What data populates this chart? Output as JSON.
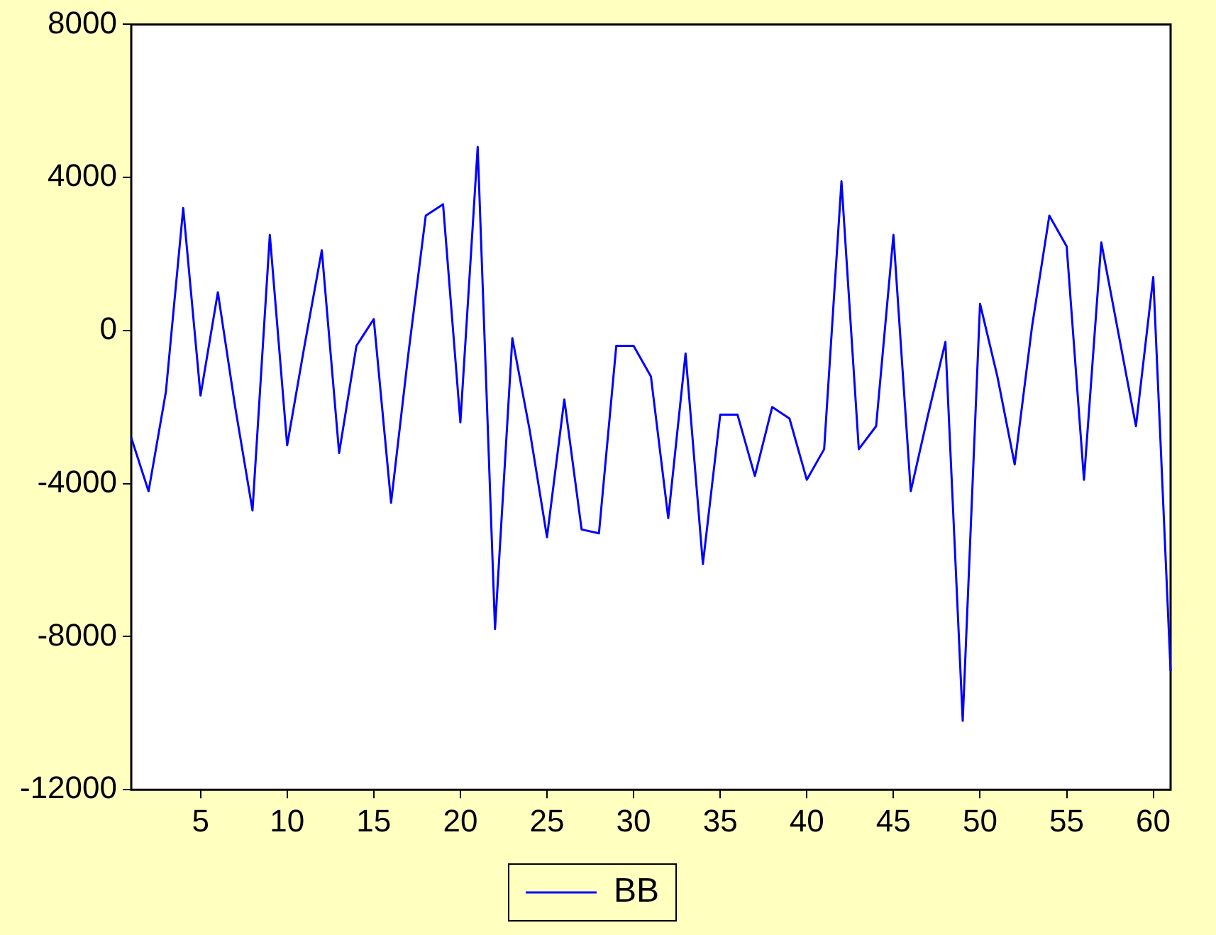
{
  "chart_data": {
    "type": "line",
    "x": [
      1,
      2,
      3,
      4,
      5,
      6,
      7,
      8,
      9,
      10,
      11,
      12,
      13,
      14,
      15,
      16,
      17,
      18,
      19,
      20,
      21,
      22,
      23,
      24,
      25,
      26,
      27,
      28,
      29,
      30,
      31,
      32,
      33,
      34,
      35,
      36,
      37,
      38,
      39,
      40,
      41,
      42,
      43,
      44,
      45,
      46,
      47,
      48,
      49,
      50,
      51,
      52,
      53,
      54,
      55,
      56,
      57,
      58,
      59,
      60,
      61
    ],
    "series": [
      {
        "name": "BB",
        "color": "#0000ff",
        "values": [
          -2800,
          -4200,
          -1600,
          3200,
          -1700,
          1000,
          -2000,
          -4700,
          2500,
          -3000,
          -400,
          2100,
          -3200,
          -400,
          300,
          -4500,
          -600,
          3000,
          3300,
          -2400,
          4800,
          -7800,
          -200,
          -2600,
          -5400,
          -1800,
          -5200,
          -5300,
          -400,
          -400,
          -1200,
          -4900,
          -600,
          -6100,
          -2200,
          -2200,
          -3800,
          -2000,
          -2300,
          -3900,
          -3100,
          3900,
          -3100,
          -2500,
          2500,
          -4200,
          -2200,
          -300,
          -10200,
          700,
          -1200,
          -3500,
          100,
          3000,
          2200,
          -3900,
          2300,
          -100,
          -2500,
          1400,
          -8900
        ]
      }
    ],
    "xlim": [
      1,
      61
    ],
    "xticks": [
      5,
      10,
      15,
      20,
      25,
      30,
      35,
      40,
      45,
      50,
      55,
      60
    ],
    "ylim": [
      -12000,
      8000
    ],
    "yticks": [
      -12000,
      -8000,
      -4000,
      0,
      4000,
      8000
    ],
    "grid": false,
    "legend": "bottom",
    "marker": "none",
    "line_style": "solid"
  }
}
